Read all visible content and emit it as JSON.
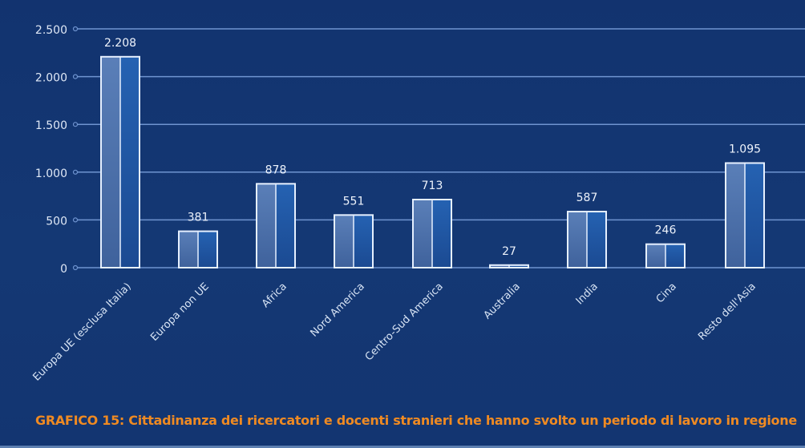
{
  "chart_data": {
    "type": "bar",
    "title": "GRAFICO 15: Cittadinanza dei ricercatori e docenti stranieri che hanno svolto un periodo di lavoro in regione",
    "xlabel": "",
    "ylabel": "",
    "categories": [
      "Europa UE (esclusa Italia)",
      "Europa non UE",
      "Africa",
      "Nord America",
      "Centro-Sud America",
      "Australia",
      "India",
      "Cina",
      "Resto dell'Asia"
    ],
    "values": [
      2208,
      381,
      878,
      551,
      713,
      27,
      587,
      246,
      1095
    ],
    "value_labels": [
      "2.208",
      "381",
      "878",
      "551",
      "713",
      "27",
      "587",
      "246",
      "1.095"
    ],
    "ylim": [
      0,
      2500
    ],
    "yticks": [
      0,
      500,
      1000,
      1500,
      2000,
      2500
    ],
    "ytick_labels": [
      "0",
      "500",
      "1.000",
      "1.500",
      "2.000",
      "2.500"
    ],
    "grid": true,
    "legend": "none",
    "colors": {
      "background": "#133671",
      "grid": "#6f94d0",
      "bar_left": "#4f74ad",
      "bar_right": "#1f58a6",
      "bar_outline": "#e6f0ff",
      "caption": "#ef8a22"
    }
  }
}
